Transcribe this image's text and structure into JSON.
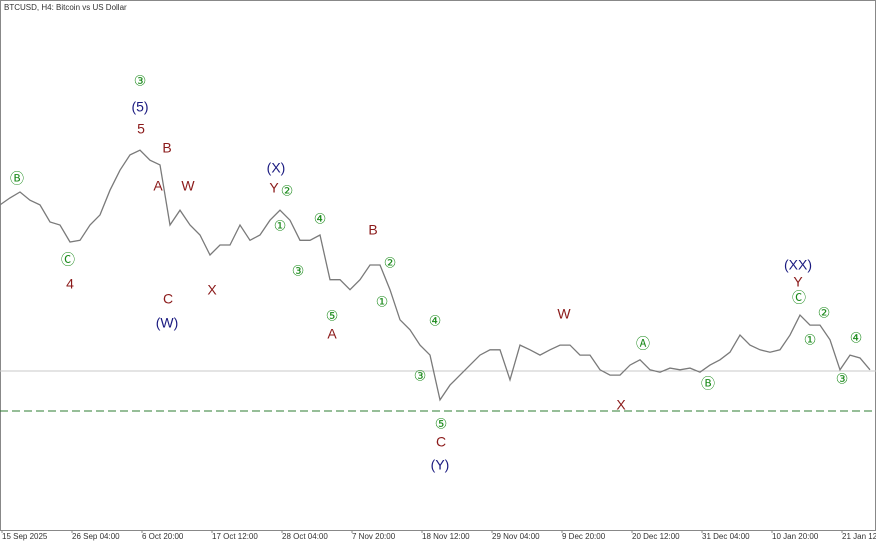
{
  "chart_data": {
    "type": "line",
    "title": "BTCUSD, H4:  Bitcoin vs US Dollar",
    "x": [
      0,
      1,
      2,
      3,
      4,
      5,
      6,
      7,
      8,
      9,
      10,
      11,
      12,
      13,
      14,
      15,
      16,
      17,
      18,
      19,
      20,
      21,
      22,
      23,
      24,
      25,
      26,
      27,
      28,
      29,
      30,
      31,
      32,
      33,
      34,
      35,
      36,
      37,
      38,
      39,
      40,
      41,
      42,
      43,
      44,
      45,
      46,
      47,
      48,
      49,
      50,
      51,
      52,
      53,
      54,
      55,
      56,
      57,
      58,
      59,
      60,
      61,
      62,
      63,
      64,
      65,
      66,
      67,
      68,
      69,
      70,
      71,
      72,
      73,
      74,
      75,
      76,
      77,
      78,
      79,
      80,
      81,
      82,
      83,
      84,
      85,
      86,
      87
    ],
    "series": [
      {
        "name": "BTCUSD",
        "color": "#7a7a7a",
        "values": [
          115200,
          116400,
          117400,
          116000,
          115200,
          112300,
          111800,
          108900,
          109200,
          111800,
          113500,
          117700,
          121100,
          123700,
          124500,
          122800,
          122000,
          111800,
          114300,
          111800,
          110100,
          106700,
          108400,
          108400,
          111800,
          109200,
          110100,
          112600,
          114300,
          112600,
          109200,
          109200,
          110100,
          102500,
          102500,
          100800,
          102500,
          105000,
          105000,
          100800,
          95700,
          94000,
          91400,
          89700,
          82100,
          84600,
          86300,
          88000,
          89700,
          90600,
          90600,
          85500,
          91400,
          90600,
          89700,
          90600,
          91400,
          91400,
          89700,
          89700,
          87200,
          86300,
          86300,
          88000,
          88900,
          87200,
          86800,
          87500,
          87200,
          87500,
          86800,
          88000,
          88900,
          90200,
          93100,
          91400,
          90600,
          90200,
          90600,
          93100,
          96500,
          94800,
          94800,
          92300,
          87200,
          89700,
          89200,
          87200
        ]
      }
    ],
    "xlim": [
      0,
      87.6
    ],
    "ylim": [
      60000,
      150000
    ],
    "xticks": [
      {
        "value": 0,
        "label": "15 Sep 2025"
      },
      {
        "value": 7,
        "label": "26 Sep 04:00"
      },
      {
        "value": 14,
        "label": "6 Oct 20:00"
      },
      {
        "value": 21,
        "label": "17 Oct 12:00"
      },
      {
        "value": 28,
        "label": "28 Oct 04:00"
      },
      {
        "value": 35,
        "label": "7 Nov 20:00"
      },
      {
        "value": 42,
        "label": "18 Nov 12:00"
      },
      {
        "value": 49,
        "label": "29 Nov 04:00"
      },
      {
        "value": 56,
        "label": "9 Dec 20:00"
      },
      {
        "value": 63,
        "label": "20 Dec 12:00"
      },
      {
        "value": 70,
        "label": "31 Dec 04:00"
      },
      {
        "value": 77,
        "label": "10 Jan 20:00"
      },
      {
        "value": 84,
        "label": "21 Jan 12:00"
      }
    ],
    "hlines": [
      {
        "value": 87000,
        "color": "#c8c8c8"
      },
      {
        "value": 80200,
        "color": "#2e7d32",
        "dashed": true
      }
    ],
    "annotations": [
      {
        "text": "Ⓑ",
        "color": "#1a8a1a"
      },
      {
        "text": "Ⓒ",
        "color": "#1a8a1a"
      },
      {
        "text": "4",
        "color": "#8b1a1a"
      },
      {
        "text": "③",
        "color": "#1a8a1a"
      },
      {
        "text": "(5)",
        "color": "#1a1a80"
      },
      {
        "text": "5",
        "color": "#8b1a1a"
      },
      {
        "text": "B",
        "color": "#8b1a1a"
      },
      {
        "text": "A",
        "color": "#8b1a1a"
      },
      {
        "text": "W",
        "color": "#8b1a1a"
      },
      {
        "text": "C",
        "color": "#8b1a1a"
      },
      {
        "text": "(W)",
        "color": "#1a1a80"
      },
      {
        "text": "X",
        "color": "#8b1a1a"
      },
      {
        "text": "(X)",
        "color": "#1a1a80"
      },
      {
        "text": "Y",
        "color": "#8b1a1a"
      },
      {
        "text": "②",
        "color": "#1a8a1a"
      },
      {
        "text": "①",
        "color": "#1a8a1a"
      },
      {
        "text": "④",
        "color": "#1a8a1a"
      },
      {
        "text": "③",
        "color": "#1a8a1a"
      },
      {
        "text": "B",
        "color": "#8b1a1a"
      },
      {
        "text": "②",
        "color": "#1a8a1a"
      },
      {
        "text": "①",
        "color": "#1a8a1a"
      },
      {
        "text": "⑤",
        "color": "#1a8a1a"
      },
      {
        "text": "A",
        "color": "#8b1a1a"
      },
      {
        "text": "④",
        "color": "#1a8a1a"
      },
      {
        "text": "③",
        "color": "#1a8a1a"
      },
      {
        "text": "⑤",
        "color": "#1a8a1a"
      },
      {
        "text": "C",
        "color": "#8b1a1a"
      },
      {
        "text": "(Y)",
        "color": "#1a1a80"
      },
      {
        "text": "W",
        "color": "#8b1a1a"
      },
      {
        "text": "Ⓐ",
        "color": "#1a8a1a"
      },
      {
        "text": "Ⓑ",
        "color": "#1a8a1a"
      },
      {
        "text": "X",
        "color": "#8b1a1a"
      },
      {
        "text": "(XX)",
        "color": "#1a1a80"
      },
      {
        "text": "Y",
        "color": "#8b1a1a"
      },
      {
        "text": "Ⓒ",
        "color": "#1a8a1a"
      },
      {
        "text": "②",
        "color": "#1a8a1a"
      },
      {
        "text": "①",
        "color": "#1a8a1a"
      },
      {
        "text": "④",
        "color": "#1a8a1a"
      },
      {
        "text": "③",
        "color": "#1a8a1a"
      }
    ]
  }
}
